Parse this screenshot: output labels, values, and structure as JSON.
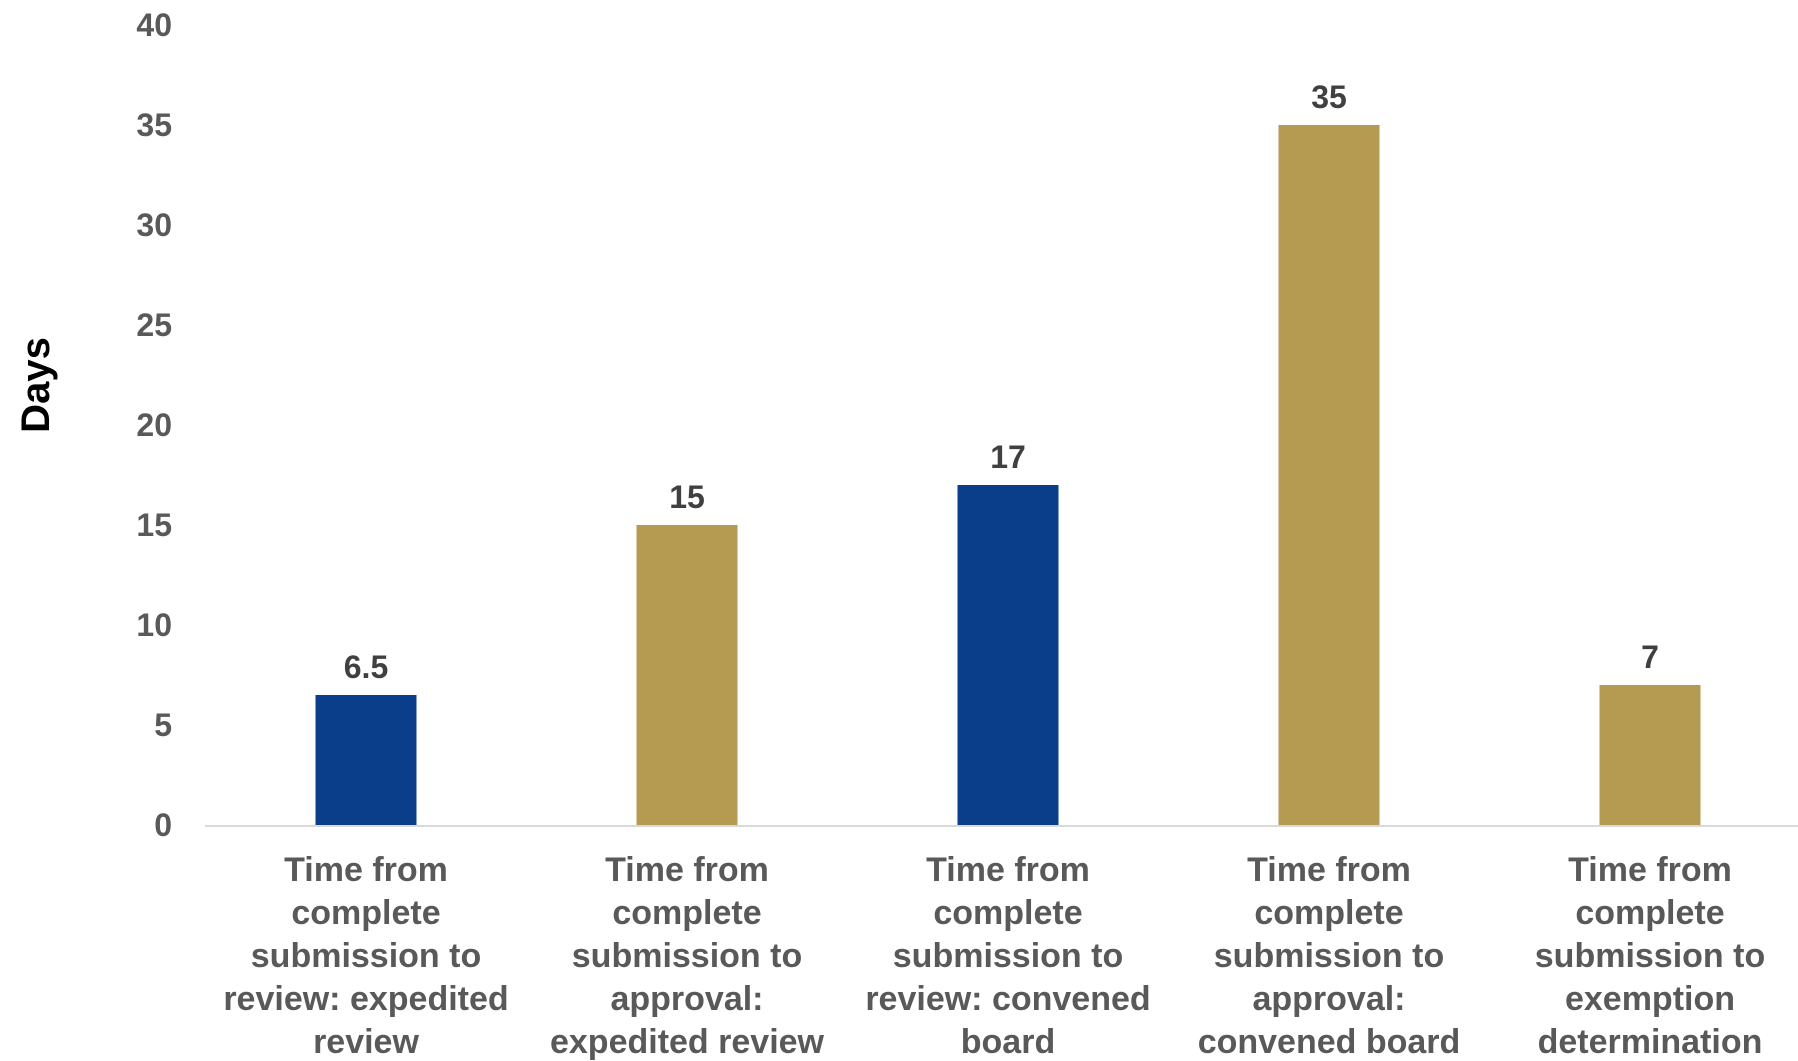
{
  "chart_data": {
    "type": "bar",
    "title": "",
    "xlabel": "",
    "ylabel": "Days",
    "ylim": [
      0,
      40
    ],
    "yticks": [
      0,
      5,
      10,
      15,
      20,
      25,
      30,
      35,
      40
    ],
    "grid": false,
    "legend": "none",
    "categories": [
      [
        "Time from",
        "complete",
        "submission to",
        "review: expedited",
        "review"
      ],
      [
        "Time from",
        "complete",
        "submission to",
        "approval:",
        "expedited review"
      ],
      [
        "Time from",
        "complete",
        "submission to",
        "review: convened",
        "board"
      ],
      [
        "Time from",
        "complete",
        "submission to",
        "approval:",
        "convened board"
      ],
      [
        "Time from",
        "complete",
        "submission to",
        "exemption",
        "determination"
      ]
    ],
    "values": [
      6.5,
      15,
      17,
      35,
      7
    ],
    "data_labels": [
      "6.5",
      "15",
      "17",
      "35",
      "7"
    ],
    "bar_colors": [
      "#0a3d8a",
      "#b59a52",
      "#0a3d8a",
      "#b59a52",
      "#b59a52"
    ]
  }
}
